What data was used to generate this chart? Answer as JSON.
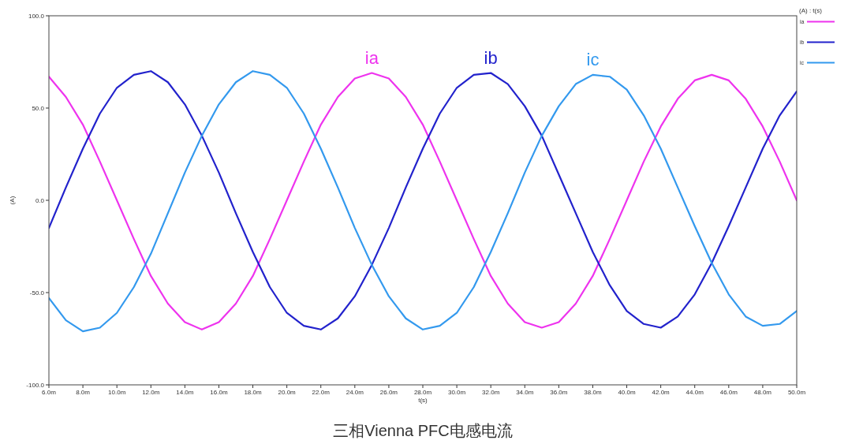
{
  "chart_data": {
    "type": "line",
    "xlabel": "t(s)",
    "ylabel": "(A)",
    "legend_title": "(A) : t(s)",
    "legend": "top right",
    "grid": false,
    "marker": "none",
    "line_style": "solid",
    "x": [
      6,
      7,
      8,
      9,
      10,
      11,
      12,
      13,
      14,
      15,
      16,
      17,
      18,
      19,
      20,
      21,
      22,
      23,
      24,
      25,
      26,
      27,
      28,
      29,
      30,
      31,
      32,
      33,
      34,
      35,
      36,
      37,
      38,
      39,
      40,
      41,
      42,
      43,
      44,
      45,
      46,
      47,
      48,
      49,
      50
    ],
    "series": [
      {
        "name": "ia",
        "color": "#ee33ee",
        "values": [
          67,
          56,
          41,
          21,
          0,
          -21,
          -41,
          -56,
          -66,
          -70,
          -66,
          -56,
          -41,
          -21,
          0,
          21,
          41,
          56,
          66,
          69,
          66,
          56,
          41,
          21,
          0,
          -21,
          -41,
          -56,
          -66,
          -69,
          -66,
          -56,
          -41,
          -21,
          0,
          21,
          40,
          55,
          65,
          68,
          65,
          55,
          40,
          21,
          0
        ]
      },
      {
        "name": "ib",
        "color": "#2222cc",
        "values": [
          -15,
          7,
          28,
          47,
          61,
          68,
          70,
          64,
          52,
          35,
          15,
          -7,
          -28,
          -47,
          -61,
          -68,
          -70,
          -64,
          -52,
          -35,
          -15,
          7,
          28,
          47,
          61,
          68,
          69,
          63,
          51,
          35,
          14,
          -7,
          -28,
          -46,
          -60,
          -67,
          -69,
          -63,
          -51,
          -34,
          -14,
          7,
          28,
          46,
          59
        ]
      },
      {
        "name": "ic",
        "color": "#3399ee",
        "values": [
          -53,
          -65,
          -71,
          -69,
          -61,
          -47,
          -29,
          -7,
          15,
          35,
          52,
          64,
          70,
          68,
          61,
          47,
          28,
          7,
          -15,
          -35,
          -52,
          -64,
          -70,
          -68,
          -61,
          -47,
          -28,
          -7,
          15,
          35,
          51,
          63,
          68,
          67,
          60,
          46,
          28,
          7,
          -14,
          -34,
          -51,
          -63,
          -68,
          -67,
          -60
        ]
      }
    ],
    "xlim": [
      6,
      50
    ],
    "xticks": [
      {
        "value": 6,
        "label": "6.0m"
      },
      {
        "value": 8,
        "label": "8.0m"
      },
      {
        "value": 10,
        "label": "10.0m"
      },
      {
        "value": 12,
        "label": "12.0m"
      },
      {
        "value": 14,
        "label": "14.0m"
      },
      {
        "value": 16,
        "label": "16.0m"
      },
      {
        "value": 18,
        "label": "18.0m"
      },
      {
        "value": 20,
        "label": "20.0m"
      },
      {
        "value": 22,
        "label": "22.0m"
      },
      {
        "value": 24,
        "label": "24.0m"
      },
      {
        "value": 26,
        "label": "26.0m"
      },
      {
        "value": 28,
        "label": "28.0m"
      },
      {
        "value": 30,
        "label": "30.0m"
      },
      {
        "value": 32,
        "label": "32.0m"
      },
      {
        "value": 34,
        "label": "34.0m"
      },
      {
        "value": 36,
        "label": "36.0m"
      },
      {
        "value": 38,
        "label": "38.0m"
      },
      {
        "value": 40,
        "label": "40.0m"
      },
      {
        "value": 42,
        "label": "42.0m"
      },
      {
        "value": 44,
        "label": "44.0m"
      },
      {
        "value": 46,
        "label": "46.0m"
      },
      {
        "value": 48,
        "label": "48.0m"
      },
      {
        "value": 50,
        "label": "50.0m"
      }
    ],
    "ylim": [
      -100,
      100
    ],
    "yticks": [
      {
        "value": -100,
        "label": "-100.0"
      },
      {
        "value": -50,
        "label": "-50.0"
      },
      {
        "value": 0,
        "label": "0.0"
      },
      {
        "value": 50,
        "label": "50.0"
      },
      {
        "value": 100,
        "label": "100.0"
      }
    ],
    "annotations": [
      "ia",
      "ib",
      "ic",
      "三相Vienna PFC电感电流"
    ]
  }
}
